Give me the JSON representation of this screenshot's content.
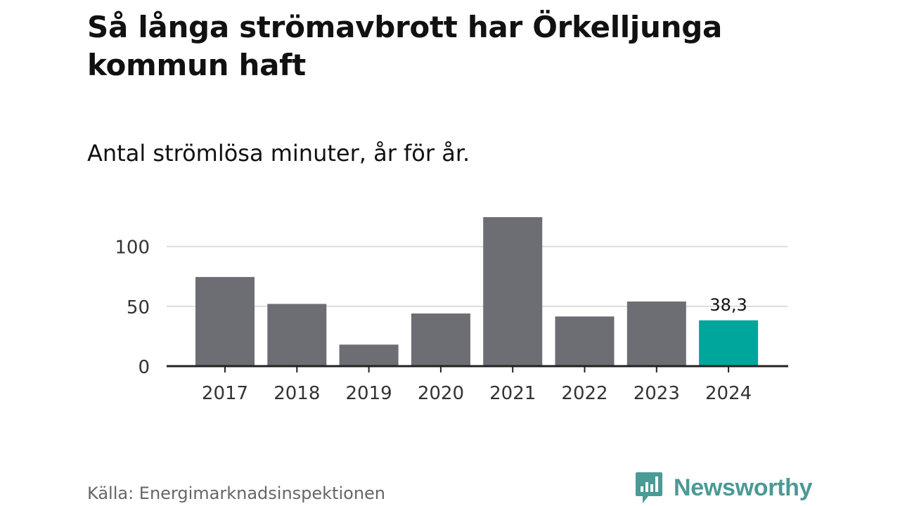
{
  "header": {
    "title": "Så långa strömavbrott har Örkelljunga kommun haft",
    "subtitle": "Antal strömlösa minuter, år för år."
  },
  "footer": {
    "source": "Källa: Energimarknadsinspektionen",
    "brand": "Newsworthy",
    "brand_color": "#4a9a96",
    "logo_icon": "newsworthy-logo-icon"
  },
  "colors": {
    "bar_default": "#6d6d74",
    "bar_highlight": "#00a69c",
    "grid": "#dddddd",
    "axis": "#222222",
    "tick_text": "#333333"
  },
  "chart_data": {
    "type": "bar",
    "title": "Så långa strömavbrott har Örkelljunga kommun haft",
    "subtitle": "Antal strömlösa minuter, år för år.",
    "xlabel": "",
    "ylabel": "",
    "categories": [
      "2017",
      "2018",
      "2019",
      "2020",
      "2021",
      "2022",
      "2023",
      "2024"
    ],
    "values": [
      74.5,
      52,
      18,
      44,
      124.5,
      41.5,
      54,
      38.3
    ],
    "highlight_index": 7,
    "data_labels": [
      {
        "index": 7,
        "text": "38,3"
      }
    ],
    "yticks": [
      0,
      50,
      100
    ],
    "ytick_labels": [
      "0",
      "50",
      "100"
    ],
    "ylim": [
      0,
      124.5
    ],
    "grid": true,
    "legend": "none"
  }
}
